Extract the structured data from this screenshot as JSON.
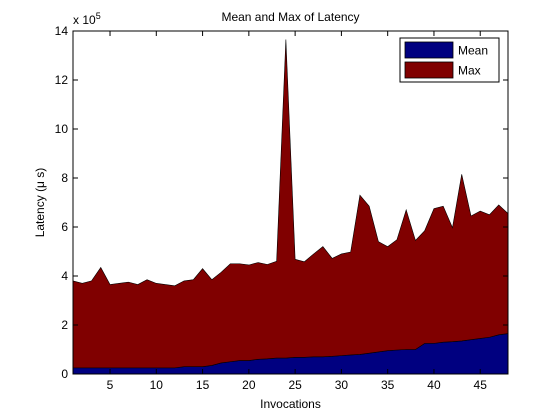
{
  "chart_data": {
    "type": "area",
    "title": "Mean and Max of Latency",
    "xlabel": "Invocations",
    "ylabel": "Latency (μ s)",
    "y_exponent_label": "x 10",
    "y_exponent_power": "5",
    "y_scale": 100000,
    "xlim": [
      1,
      48
    ],
    "ylim": [
      0,
      1400000
    ],
    "xticks": [
      5,
      10,
      15,
      20,
      25,
      30,
      35,
      40,
      45
    ],
    "yticks": [
      0,
      200000,
      400000,
      600000,
      800000,
      1000000,
      1200000,
      1400000
    ],
    "ytick_labels": [
      "0",
      "2",
      "4",
      "6",
      "8",
      "10",
      "12",
      "14"
    ],
    "grid": false,
    "legend_position": "top-right",
    "stacked": true,
    "x": [
      1,
      2,
      3,
      4,
      5,
      6,
      7,
      8,
      9,
      10,
      11,
      12,
      13,
      14,
      15,
      16,
      17,
      18,
      19,
      20,
      21,
      22,
      23,
      24,
      25,
      26,
      27,
      28,
      29,
      30,
      31,
      32,
      33,
      34,
      35,
      36,
      37,
      38,
      39,
      40,
      41,
      42,
      43,
      44,
      45,
      46,
      47,
      48
    ],
    "series": [
      {
        "name": "Mean",
        "color": "#000080",
        "values": [
          25000,
          25000,
          25000,
          25000,
          25000,
          25000,
          25000,
          25000,
          25000,
          25000,
          25000,
          25000,
          30000,
          30000,
          30000,
          35000,
          45000,
          50000,
          55000,
          55000,
          60000,
          62000,
          65000,
          65000,
          68000,
          68000,
          70000,
          70000,
          72000,
          75000,
          78000,
          80000,
          85000,
          90000,
          95000,
          98000,
          100000,
          100000,
          125000,
          125000,
          130000,
          132000,
          135000,
          140000,
          145000,
          150000,
          160000,
          165000
        ]
      },
      {
        "name": "Max",
        "color": "#800000",
        "values": [
          355000,
          345000,
          355000,
          410000,
          340000,
          345000,
          350000,
          340000,
          360000,
          345000,
          340000,
          335000,
          350000,
          355000,
          400000,
          350000,
          370000,
          400000,
          395000,
          390000,
          395000,
          385000,
          395000,
          1300000,
          400000,
          390000,
          420000,
          450000,
          400000,
          415000,
          420000,
          650000,
          600000,
          450000,
          425000,
          450000,
          570000,
          445000,
          460000,
          550000,
          555000,
          465000,
          680000,
          505000,
          520000,
          500000,
          530000,
          490000
        ]
      }
    ]
  }
}
